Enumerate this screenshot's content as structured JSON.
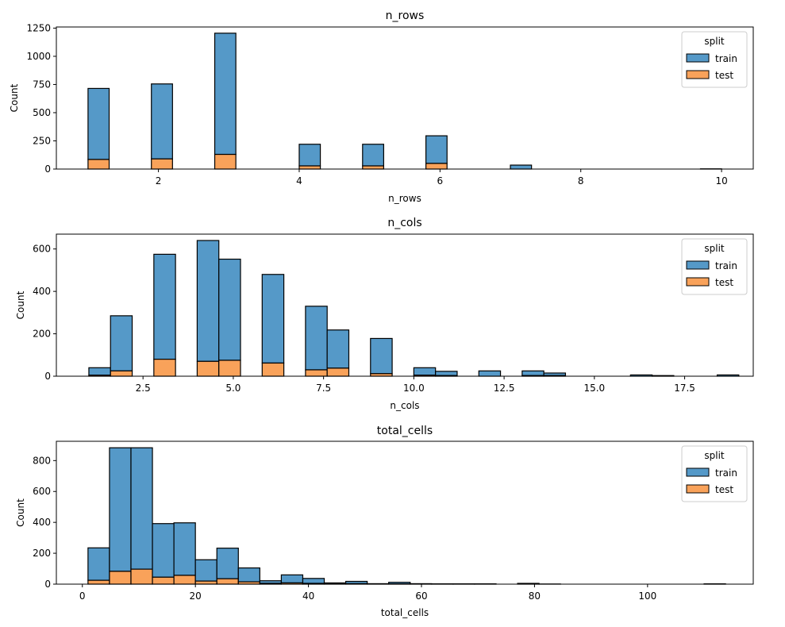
{
  "chart_data": [
    {
      "type": "bar",
      "subtype": "stacked-histogram",
      "title": "n_rows",
      "xlabel": "n_rows",
      "ylabel": "Count",
      "xlim": [
        0.55,
        10.45
      ],
      "ylim": [
        0,
        1260
      ],
      "xticks": [
        2,
        4,
        6,
        8,
        10
      ],
      "xtick_labels": [
        "2",
        "4",
        "6",
        "8",
        "10"
      ],
      "yticks": [
        0,
        250,
        500,
        750,
        1000,
        1250
      ],
      "ytick_labels": [
        "0",
        "250",
        "500",
        "750",
        "1000",
        "1250"
      ],
      "bin_width": 0.3,
      "bins": [
        {
          "x0": 1.0,
          "x1": 1.3,
          "test": 85,
          "train": 630
        },
        {
          "x0": 1.9,
          "x1": 2.2,
          "test": 90,
          "train": 665
        },
        {
          "x0": 2.8,
          "x1": 3.1,
          "test": 130,
          "train": 1075
        },
        {
          "x0": 4.0,
          "x1": 4.3,
          "test": 28,
          "train": 192
        },
        {
          "x0": 4.9,
          "x1": 5.2,
          "test": 28,
          "train": 192
        },
        {
          "x0": 5.8,
          "x1": 6.1,
          "test": 50,
          "train": 245
        },
        {
          "x0": 7.0,
          "x1": 7.3,
          "test": 0,
          "train": 35
        },
        {
          "x0": 9.7,
          "x1": 10.0,
          "test": 0,
          "train": 2
        }
      ],
      "legend": {
        "title": "split",
        "entries": [
          "train",
          "test"
        ],
        "position": "upper right"
      }
    },
    {
      "type": "bar",
      "subtype": "stacked-histogram",
      "title": "n_cols",
      "xlabel": "n_cols",
      "ylabel": "Count",
      "xlim": [
        0.1,
        19.4
      ],
      "ylim": [
        0,
        670
      ],
      "xticks": [
        2.5,
        5.0,
        7.5,
        10.0,
        12.5,
        15.0,
        17.5
      ],
      "xtick_labels": [
        "2.5",
        "5.0",
        "7.5",
        "10.0",
        "12.5",
        "15.0",
        "17.5"
      ],
      "yticks": [
        0,
        200,
        400,
        600
      ],
      "ytick_labels": [
        "0",
        "200",
        "400",
        "600"
      ],
      "bin_width": 0.6,
      "bins": [
        {
          "x0": 1.0,
          "x1": 1.6,
          "test": 5,
          "train": 35
        },
        {
          "x0": 1.6,
          "x1": 2.2,
          "test": 25,
          "train": 260
        },
        {
          "x0": 2.8,
          "x1": 3.4,
          "test": 80,
          "train": 495
        },
        {
          "x0": 4.0,
          "x1": 4.6,
          "test": 70,
          "train": 570
        },
        {
          "x0": 4.6,
          "x1": 5.2,
          "test": 75,
          "train": 477
        },
        {
          "x0": 5.8,
          "x1": 6.4,
          "test": 62,
          "train": 418
        },
        {
          "x0": 7.0,
          "x1": 7.6,
          "test": 30,
          "train": 300
        },
        {
          "x0": 7.6,
          "x1": 8.2,
          "test": 38,
          "train": 180
        },
        {
          "x0": 8.8,
          "x1": 9.4,
          "test": 12,
          "train": 166
        },
        {
          "x0": 10.0,
          "x1": 10.6,
          "test": 5,
          "train": 35
        },
        {
          "x0": 10.6,
          "x1": 11.2,
          "test": 3,
          "train": 20
        },
        {
          "x0": 11.8,
          "x1": 12.4,
          "test": 0,
          "train": 25
        },
        {
          "x0": 13.0,
          "x1": 13.6,
          "test": 3,
          "train": 22
        },
        {
          "x0": 13.6,
          "x1": 14.2,
          "test": 3,
          "train": 12
        },
        {
          "x0": 16.0,
          "x1": 16.6,
          "test": 0,
          "train": 6
        },
        {
          "x0": 16.6,
          "x1": 17.2,
          "test": 0,
          "train": 3
        },
        {
          "x0": 18.4,
          "x1": 19.0,
          "test": 0,
          "train": 6
        }
      ],
      "legend": {
        "title": "split",
        "entries": [
          "train",
          "test"
        ],
        "position": "upper right"
      }
    },
    {
      "type": "bar",
      "subtype": "stacked-histogram",
      "title": "total_cells",
      "xlabel": "total_cells",
      "ylabel": "Count",
      "xlim": [
        -4.6,
        118.7
      ],
      "ylim": [
        0,
        925
      ],
      "xticks": [
        0,
        20,
        40,
        60,
        80,
        100
      ],
      "xtick_labels": [
        "0",
        "20",
        "40",
        "60",
        "80",
        "100"
      ],
      "yticks": [
        0,
        200,
        400,
        600,
        800
      ],
      "ytick_labels": [
        "0",
        "200",
        "400",
        "600",
        "800"
      ],
      "bin_width": 3.8,
      "bins": [
        {
          "x0": 1.0,
          "x1": 4.8,
          "test": 25,
          "train": 210
        },
        {
          "x0": 4.8,
          "x1": 8.6,
          "test": 83,
          "train": 800
        },
        {
          "x0": 8.6,
          "x1": 12.4,
          "test": 97,
          "train": 786
        },
        {
          "x0": 12.4,
          "x1": 16.2,
          "test": 45,
          "train": 347
        },
        {
          "x0": 16.2,
          "x1": 20.0,
          "test": 57,
          "train": 340
        },
        {
          "x0": 20.0,
          "x1": 23.8,
          "test": 20,
          "train": 138
        },
        {
          "x0": 23.8,
          "x1": 27.6,
          "test": 35,
          "train": 198
        },
        {
          "x0": 27.6,
          "x1": 31.4,
          "test": 15,
          "train": 90
        },
        {
          "x0": 31.4,
          "x1": 35.2,
          "test": 5,
          "train": 17
        },
        {
          "x0": 35.2,
          "x1": 39.0,
          "test": 8,
          "train": 52
        },
        {
          "x0": 39.0,
          "x1": 42.8,
          "test": 5,
          "train": 32
        },
        {
          "x0": 42.8,
          "x1": 46.6,
          "test": 2,
          "train": 6
        },
        {
          "x0": 46.6,
          "x1": 50.4,
          "test": 3,
          "train": 15
        },
        {
          "x0": 50.4,
          "x1": 54.2,
          "test": 0,
          "train": 3
        },
        {
          "x0": 54.2,
          "x1": 58.0,
          "test": 2,
          "train": 10
        },
        {
          "x0": 58.0,
          "x1": 61.8,
          "test": 0,
          "train": 3
        },
        {
          "x0": 61.8,
          "x1": 65.6,
          "test": 0,
          "train": 2
        },
        {
          "x0": 65.6,
          "x1": 69.4,
          "test": 0,
          "train": 2
        },
        {
          "x0": 69.4,
          "x1": 73.2,
          "test": 0,
          "train": 2
        },
        {
          "x0": 77.0,
          "x1": 80.8,
          "test": 0,
          "train": 5
        },
        {
          "x0": 80.8,
          "x1": 84.6,
          "test": 0,
          "train": 1
        },
        {
          "x0": 110.0,
          "x1": 113.8,
          "test": 0,
          "train": 2
        }
      ],
      "legend": {
        "title": "split",
        "entries": [
          "train",
          "test"
        ],
        "position": "upper right"
      }
    }
  ],
  "colors": {
    "train": "#5599c8",
    "test": "#f9a25a",
    "edge": "#000000"
  }
}
